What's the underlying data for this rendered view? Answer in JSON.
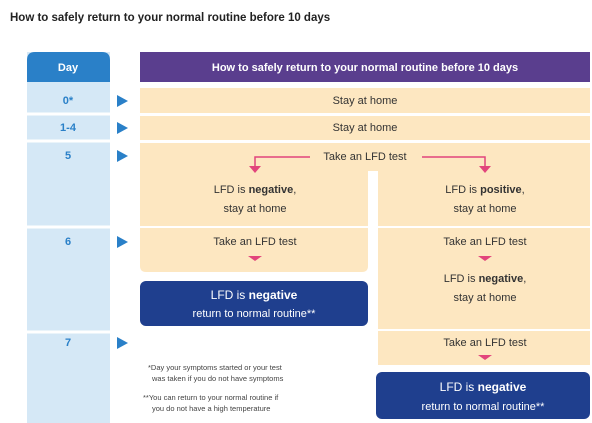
{
  "heading": "How to safely return to your normal routine before 10 days",
  "day_column": {
    "header": "Day",
    "days": [
      "0*",
      "1-4",
      "5",
      "6",
      "7"
    ]
  },
  "banner": "How to safely return to your normal routine before 10 days",
  "rows": {
    "day0": "Stay at home",
    "day1_4": "Stay at home",
    "day5": "Take an LFD test"
  },
  "left_branch": {
    "result": {
      "before": "LFD is ",
      "bold": "negative",
      "after": ",",
      "line2": "stay at home"
    },
    "day6": "Take an LFD test",
    "outcome": {
      "before": "LFD is ",
      "bold": "negative",
      "line2": "return to normal routine**"
    }
  },
  "right_branch": {
    "result": {
      "before": "LFD is ",
      "bold": "positive",
      "after": ",",
      "line2": "stay at home"
    },
    "day6": "Take an LFD test",
    "result2": {
      "before": "LFD is ",
      "bold": "negative",
      "after": ",",
      "line2": "stay at home"
    },
    "day7": "Take an LFD test",
    "outcome": {
      "before": "LFD is ",
      "bold": "negative",
      "line2": "return to normal routine**"
    }
  },
  "footnotes": [
    [
      "*Day your symptoms started or your test",
      "was taken if you do not have symptoms"
    ],
    [
      "**You can return to your normal routine if",
      "you do not have a high temperature"
    ]
  ]
}
